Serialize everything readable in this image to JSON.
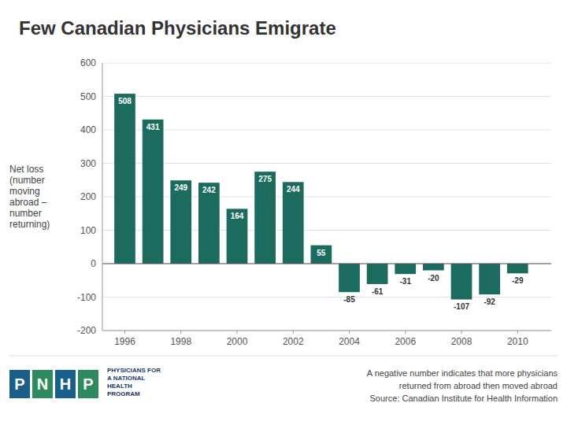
{
  "chart_data": {
    "type": "bar",
    "title": "Few Canadian Physicians Emigrate",
    "ylabel": "Net loss\n(number\nmoving\nabroad –\nnumber\nreturning)",
    "x": [
      1996,
      1997,
      1998,
      1999,
      2000,
      2001,
      2002,
      2003,
      2004,
      2005,
      2006,
      2007,
      2008,
      2009,
      2010
    ],
    "values": [
      508,
      431,
      249,
      242,
      164,
      275,
      244,
      55,
      -85,
      -61,
      -31,
      -20,
      -107,
      -92,
      -29
    ],
    "color": "#1b6b5e",
    "xlim": [
      1995.2,
      2011.2
    ],
    "xticks": [
      1996,
      1998,
      2000,
      2002,
      2004,
      2006,
      2008,
      2010
    ],
    "ylim": [
      -200,
      600
    ],
    "yticks": [
      -200,
      -100,
      0,
      100,
      200,
      300,
      400,
      500,
      600
    ],
    "grid": true,
    "data_labels": true,
    "annotations": [
      "A negative number indicates that more physicians\nreturned from abroad then moved abroad\nSource: Canadian Institute for Health Information",
      "PHYSICIANS FOR\nA NATIONAL\nHEALTH\nPROGRAM",
      "P",
      "N",
      "H",
      "P"
    ]
  }
}
